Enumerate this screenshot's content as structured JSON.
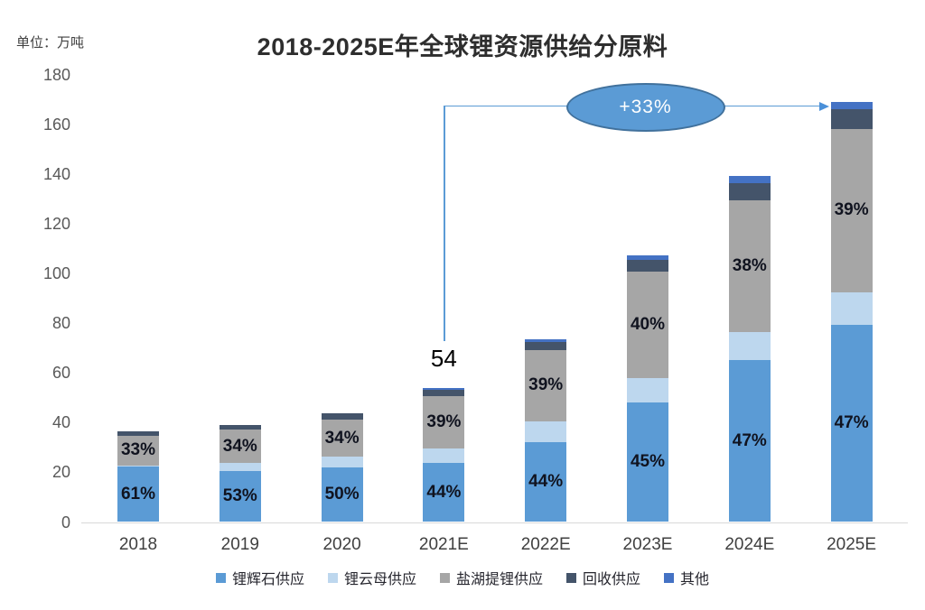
{
  "page": {
    "background": "#FFFFFF"
  },
  "chart_data": {
    "type": "bar",
    "stacked": true,
    "title": "2018-2025E年全球锂资源供给分原料",
    "unit_label": "单位：万吨",
    "categories": [
      "2018",
      "2019",
      "2020",
      "2021E",
      "2022E",
      "2023E",
      "2024E",
      "2025E"
    ],
    "series": [
      {
        "name": "锂辉石供应",
        "color": "#5B9BD5",
        "values": [
          22.2,
          20.6,
          21.8,
          23.8,
          32.3,
          48.2,
          65.3,
          79.4
        ],
        "labels": [
          "61%",
          "53%",
          "50%",
          "44%",
          "44%",
          "45%",
          "47%",
          "47%"
        ]
      },
      {
        "name": "锂云母供应",
        "color": "#BDD7EE",
        "values": [
          0.5,
          3.2,
          4.4,
          5.8,
          8.3,
          9.8,
          11.3,
          13.0
        ],
        "labels": null
      },
      {
        "name": "盐湖提锂供应",
        "color": "#A6A6A6",
        "values": [
          12.0,
          13.4,
          14.9,
          21.1,
          28.7,
          42.9,
          52.8,
          65.9
        ],
        "labels": [
          "33%",
          "34%",
          "34%",
          "39%",
          "39%",
          "40%",
          "38%",
          "39%"
        ]
      },
      {
        "name": "回收供应",
        "color": "#44546A",
        "values": [
          1.7,
          1.8,
          2.5,
          2.4,
          3.2,
          4.6,
          7.0,
          8.0
        ],
        "labels": null
      },
      {
        "name": "其他",
        "color": "#4472C4",
        "values": [
          0,
          0,
          0,
          0.9,
          1.0,
          1.8,
          2.9,
          2.9
        ],
        "labels": null
      }
    ],
    "totals": [
      36.4,
      39.0,
      43.6,
      54.0,
      73.5,
      107.3,
      139.3,
      169.2
    ],
    "total_label": {
      "category": "2021E",
      "text": "54"
    },
    "annotation": {
      "type": "ellipse-arrow",
      "text": "+33%",
      "from_category": "2021E",
      "to_category": "2025E",
      "fill": "#5B9BD5",
      "border_color": "#41719C",
      "text_color": "#FFFFFF"
    },
    "ylim": [
      0,
      180
    ],
    "yticks": [
      0,
      20,
      40,
      60,
      80,
      100,
      120,
      140,
      160,
      180
    ],
    "grid": false,
    "legend_position": "bottom"
  },
  "colors": {
    "axis_line": "#D9D9D9",
    "ytick_label": "#595959",
    "xtick_label": "#404040",
    "percent_label": "#10131F",
    "title": "#2E2E2E",
    "arrow": "#5B9BD5"
  }
}
